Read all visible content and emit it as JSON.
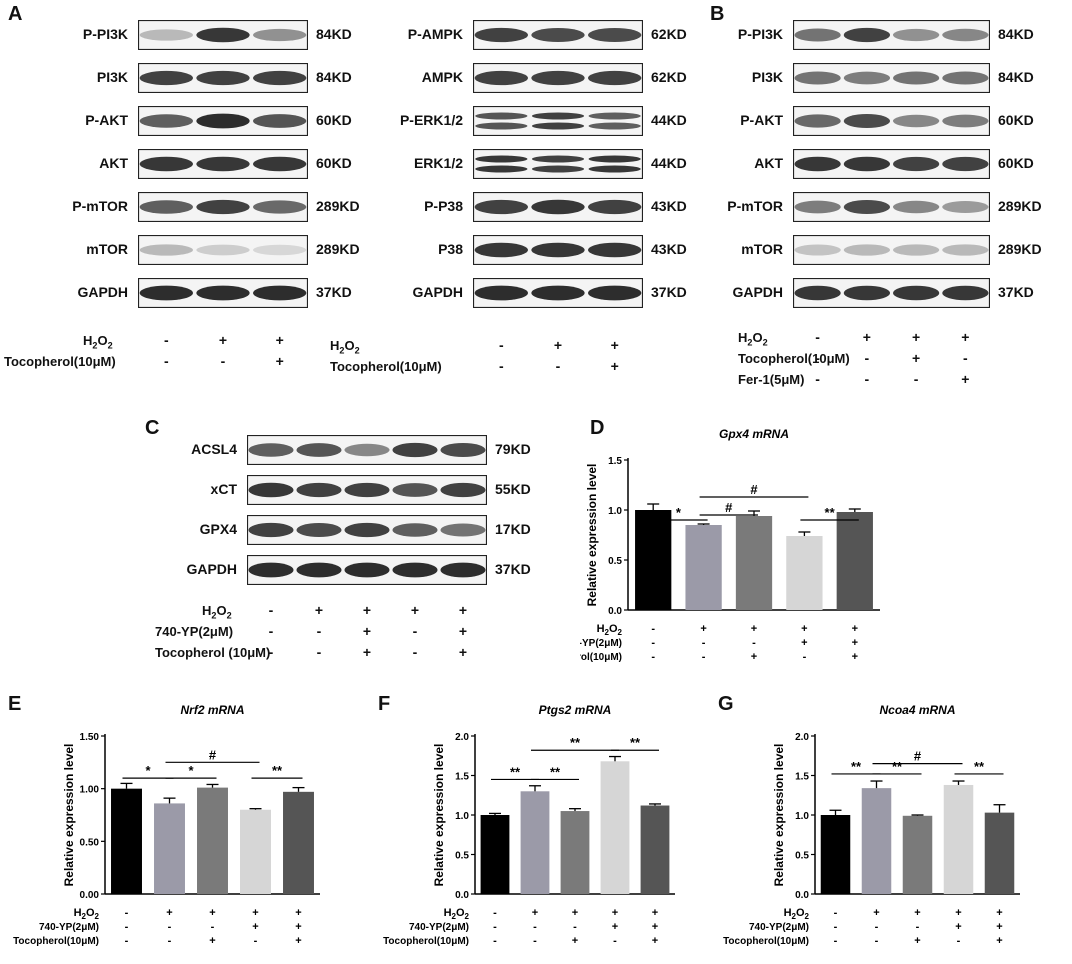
{
  "letters": {
    "A": "A",
    "B": "B",
    "C": "C",
    "D": "D",
    "E": "E",
    "F": "F",
    "G": "G"
  },
  "treat": {
    "h2o2": "H2O2",
    "toco": "Tocopherol(10μM)",
    "toco_sp": "Tocopherol (10μM)",
    "fer1": "Fer-1(5μM)",
    "yp": "740-YP(2μM)"
  },
  "blots": {
    "A1": {
      "rows": [
        {
          "label": "P-PI3K",
          "kd": "84KD",
          "bands": [
            0.25,
            0.9,
            0.45
          ]
        },
        {
          "label": "PI3K",
          "kd": "84KD",
          "bands": [
            0.85,
            0.85,
            0.85
          ]
        },
        {
          "label": "P-AKT",
          "kd": "60KD",
          "bands": [
            0.7,
            0.95,
            0.75
          ]
        },
        {
          "label": "AKT",
          "kd": "60KD",
          "bands": [
            0.9,
            0.9,
            0.9
          ]
        },
        {
          "label": "P-mTOR",
          "kd": "289KD",
          "bands": [
            0.7,
            0.85,
            0.65
          ]
        },
        {
          "label": "mTOR",
          "kd": "289KD",
          "bands": [
            0.25,
            0.15,
            0.1
          ]
        },
        {
          "label": "GAPDH",
          "kd": "37KD",
          "bands": [
            0.95,
            0.95,
            0.95
          ]
        }
      ],
      "treat": [
        [
          "-",
          "+",
          "+"
        ],
        [
          "-",
          "-",
          "+"
        ]
      ]
    },
    "A2": {
      "rows": [
        {
          "label": "P-AMPK",
          "kd": "62KD",
          "bands": [
            0.85,
            0.8,
            0.8
          ]
        },
        {
          "label": "AMPK",
          "kd": "62KD",
          "bands": [
            0.85,
            0.85,
            0.85
          ]
        },
        {
          "label": "P-ERK1/2",
          "kd": "44KD",
          "bands": [
            0.75,
            0.85,
            0.7
          ],
          "double": true
        },
        {
          "label": "ERK1/2",
          "kd": "44KD",
          "bands": [
            0.9,
            0.85,
            0.9
          ],
          "double": true
        },
        {
          "label": "P-P38",
          "kd": "43KD",
          "bands": [
            0.85,
            0.9,
            0.85
          ]
        },
        {
          "label": "P38",
          "kd": "43KD",
          "bands": [
            0.9,
            0.9,
            0.9
          ]
        },
        {
          "label": "GAPDH",
          "kd": "37KD",
          "bands": [
            0.95,
            0.95,
            0.95
          ]
        }
      ],
      "treat": [
        [
          "-",
          "+",
          "+"
        ],
        [
          "-",
          "-",
          "+"
        ]
      ]
    },
    "B": {
      "rows": [
        {
          "label": "P-PI3K",
          "kd": "84KD",
          "bands": [
            0.6,
            0.85,
            0.45,
            0.5
          ]
        },
        {
          "label": "PI3K",
          "kd": "84KD",
          "bands": [
            0.6,
            0.55,
            0.6,
            0.6
          ]
        },
        {
          "label": "P-AKT",
          "kd": "60KD",
          "bands": [
            0.65,
            0.8,
            0.5,
            0.55
          ]
        },
        {
          "label": "AKT",
          "kd": "60KD",
          "bands": [
            0.9,
            0.9,
            0.85,
            0.85
          ]
        },
        {
          "label": "P-mTOR",
          "kd": "289KD",
          "bands": [
            0.55,
            0.8,
            0.5,
            0.4
          ]
        },
        {
          "label": "mTOR",
          "kd": "289KD",
          "bands": [
            0.2,
            0.25,
            0.25,
            0.25
          ]
        },
        {
          "label": "GAPDH",
          "kd": "37KD",
          "bands": [
            0.9,
            0.9,
            0.9,
            0.9
          ]
        }
      ],
      "treat": [
        [
          "-",
          "+",
          "+",
          "+"
        ],
        [
          "-",
          "-",
          "+",
          "-"
        ],
        [
          "-",
          "-",
          "-",
          "+"
        ]
      ]
    },
    "C": {
      "rows": [
        {
          "label": "ACSL4",
          "kd": "79KD",
          "bands": [
            0.7,
            0.75,
            0.5,
            0.85,
            0.8
          ]
        },
        {
          "label": "xCT",
          "kd": "55KD",
          "bands": [
            0.9,
            0.85,
            0.85,
            0.75,
            0.85
          ]
        },
        {
          "label": "GPX4",
          "kd": "17KD",
          "bands": [
            0.85,
            0.8,
            0.85,
            0.7,
            0.6
          ]
        },
        {
          "label": "GAPDH",
          "kd": "37KD",
          "bands": [
            0.95,
            0.95,
            0.95,
            0.95,
            0.95
          ]
        }
      ],
      "treat": [
        [
          "-",
          "+",
          "+",
          "+",
          "+"
        ],
        [
          "-",
          "-",
          "+",
          "-",
          "+"
        ],
        [
          "-",
          "-",
          "+",
          "-",
          "+"
        ]
      ]
    }
  },
  "chart_data": [
    {
      "type": "bar",
      "title": "Gpx4 mRNA",
      "ylabel": "Relative expression level",
      "ylim": [
        0,
        1.5
      ],
      "yticks": [
        "0.0",
        "0.5",
        "1.0",
        "1.5"
      ],
      "values": [
        1.0,
        0.85,
        0.94,
        0.74,
        0.98
      ],
      "errors": [
        0.06,
        0.01,
        0.05,
        0.04,
        0.03
      ],
      "colors": [
        "#000000",
        "#9b9aa8",
        "#7a7a7a",
        "#d6d6d6",
        "#555555"
      ],
      "treat": [
        [
          "-",
          "+",
          "+",
          "+",
          "+"
        ],
        [
          "-",
          "-",
          "-",
          "+",
          "+"
        ],
        [
          "-",
          "-",
          "+",
          "-",
          "+"
        ]
      ],
      "sig": [
        {
          "a": 0,
          "b": 1,
          "y": 0.9,
          "t": "*"
        },
        {
          "a": 1,
          "b": 2,
          "y": 0.95,
          "t": "#"
        },
        {
          "a": 1,
          "b": 3,
          "y": 1.13,
          "t": "#"
        },
        {
          "a": 3,
          "b": 4,
          "y": 0.9,
          "t": "**"
        }
      ]
    },
    {
      "type": "bar",
      "title": "Nrf2 mRNA",
      "ylabel": "Relative expression level",
      "ylim": [
        0,
        1.5
      ],
      "yticks": [
        "0.00",
        "0.50",
        "1.00",
        "1.50"
      ],
      "values": [
        1.0,
        0.86,
        1.01,
        0.8,
        0.97
      ],
      "errors": [
        0.05,
        0.05,
        0.03,
        0.01,
        0.04
      ],
      "colors": [
        "#000000",
        "#9b9aa8",
        "#7a7a7a",
        "#d6d6d6",
        "#555555"
      ],
      "treat": [
        [
          "-",
          "+",
          "+",
          "+",
          "+"
        ],
        [
          "-",
          "-",
          "-",
          "+",
          "+"
        ],
        [
          "-",
          "-",
          "+",
          "-",
          "+"
        ]
      ],
      "sig": [
        {
          "a": 0,
          "b": 1,
          "y": 1.1,
          "t": "*"
        },
        {
          "a": 1,
          "b": 2,
          "y": 1.1,
          "t": "*"
        },
        {
          "a": 1,
          "b": 3,
          "y": 1.25,
          "t": "#"
        },
        {
          "a": 3,
          "b": 4,
          "y": 1.1,
          "t": "**"
        }
      ]
    },
    {
      "type": "bar",
      "title": "Ptgs2 mRNA",
      "ylabel": "Relative expression level",
      "ylim": [
        0,
        2.0
      ],
      "yticks": [
        "0.0",
        "0.5",
        "1.0",
        "1.5",
        "2.0"
      ],
      "values": [
        1.0,
        1.3,
        1.05,
        1.68,
        1.12
      ],
      "errors": [
        0.02,
        0.07,
        0.03,
        0.06,
        0.02
      ],
      "colors": [
        "#000000",
        "#9b9aa8",
        "#7a7a7a",
        "#d6d6d6",
        "#555555"
      ],
      "treat": [
        [
          "-",
          "+",
          "+",
          "+",
          "+"
        ],
        [
          "-",
          "-",
          "-",
          "+",
          "+"
        ],
        [
          "-",
          "-",
          "+",
          "-",
          "+"
        ]
      ],
      "sig": [
        {
          "a": 0,
          "b": 1,
          "y": 1.45,
          "t": "**"
        },
        {
          "a": 1,
          "b": 2,
          "y": 1.45,
          "t": "**"
        },
        {
          "a": 1,
          "b": 3,
          "y": 1.82,
          "t": "**"
        },
        {
          "a": 3,
          "b": 4,
          "y": 1.82,
          "t": "**"
        }
      ]
    },
    {
      "type": "bar",
      "title": "Ncoa4 mRNA",
      "ylabel": "Relative expression level",
      "ylim": [
        0,
        2.0
      ],
      "yticks": [
        "0.0",
        "0.5",
        "1.0",
        "1.5",
        "2.0"
      ],
      "values": [
        1.0,
        1.34,
        0.99,
        1.38,
        1.03
      ],
      "errors": [
        0.06,
        0.09,
        0.01,
        0.05,
        0.1
      ],
      "colors": [
        "#000000",
        "#9b9aa8",
        "#7a7a7a",
        "#d6d6d6",
        "#555555"
      ],
      "treat": [
        [
          "-",
          "+",
          "+",
          "+",
          "+"
        ],
        [
          "-",
          "-",
          "-",
          "+",
          "+"
        ],
        [
          "-",
          "-",
          "+",
          "-",
          "+"
        ]
      ],
      "sig": [
        {
          "a": 0,
          "b": 1,
          "y": 1.52,
          "t": "**"
        },
        {
          "a": 1,
          "b": 2,
          "y": 1.52,
          "t": "**"
        },
        {
          "a": 1,
          "b": 3,
          "y": 1.65,
          "t": "#"
        },
        {
          "a": 3,
          "b": 4,
          "y": 1.52,
          "t": "**"
        }
      ]
    }
  ]
}
